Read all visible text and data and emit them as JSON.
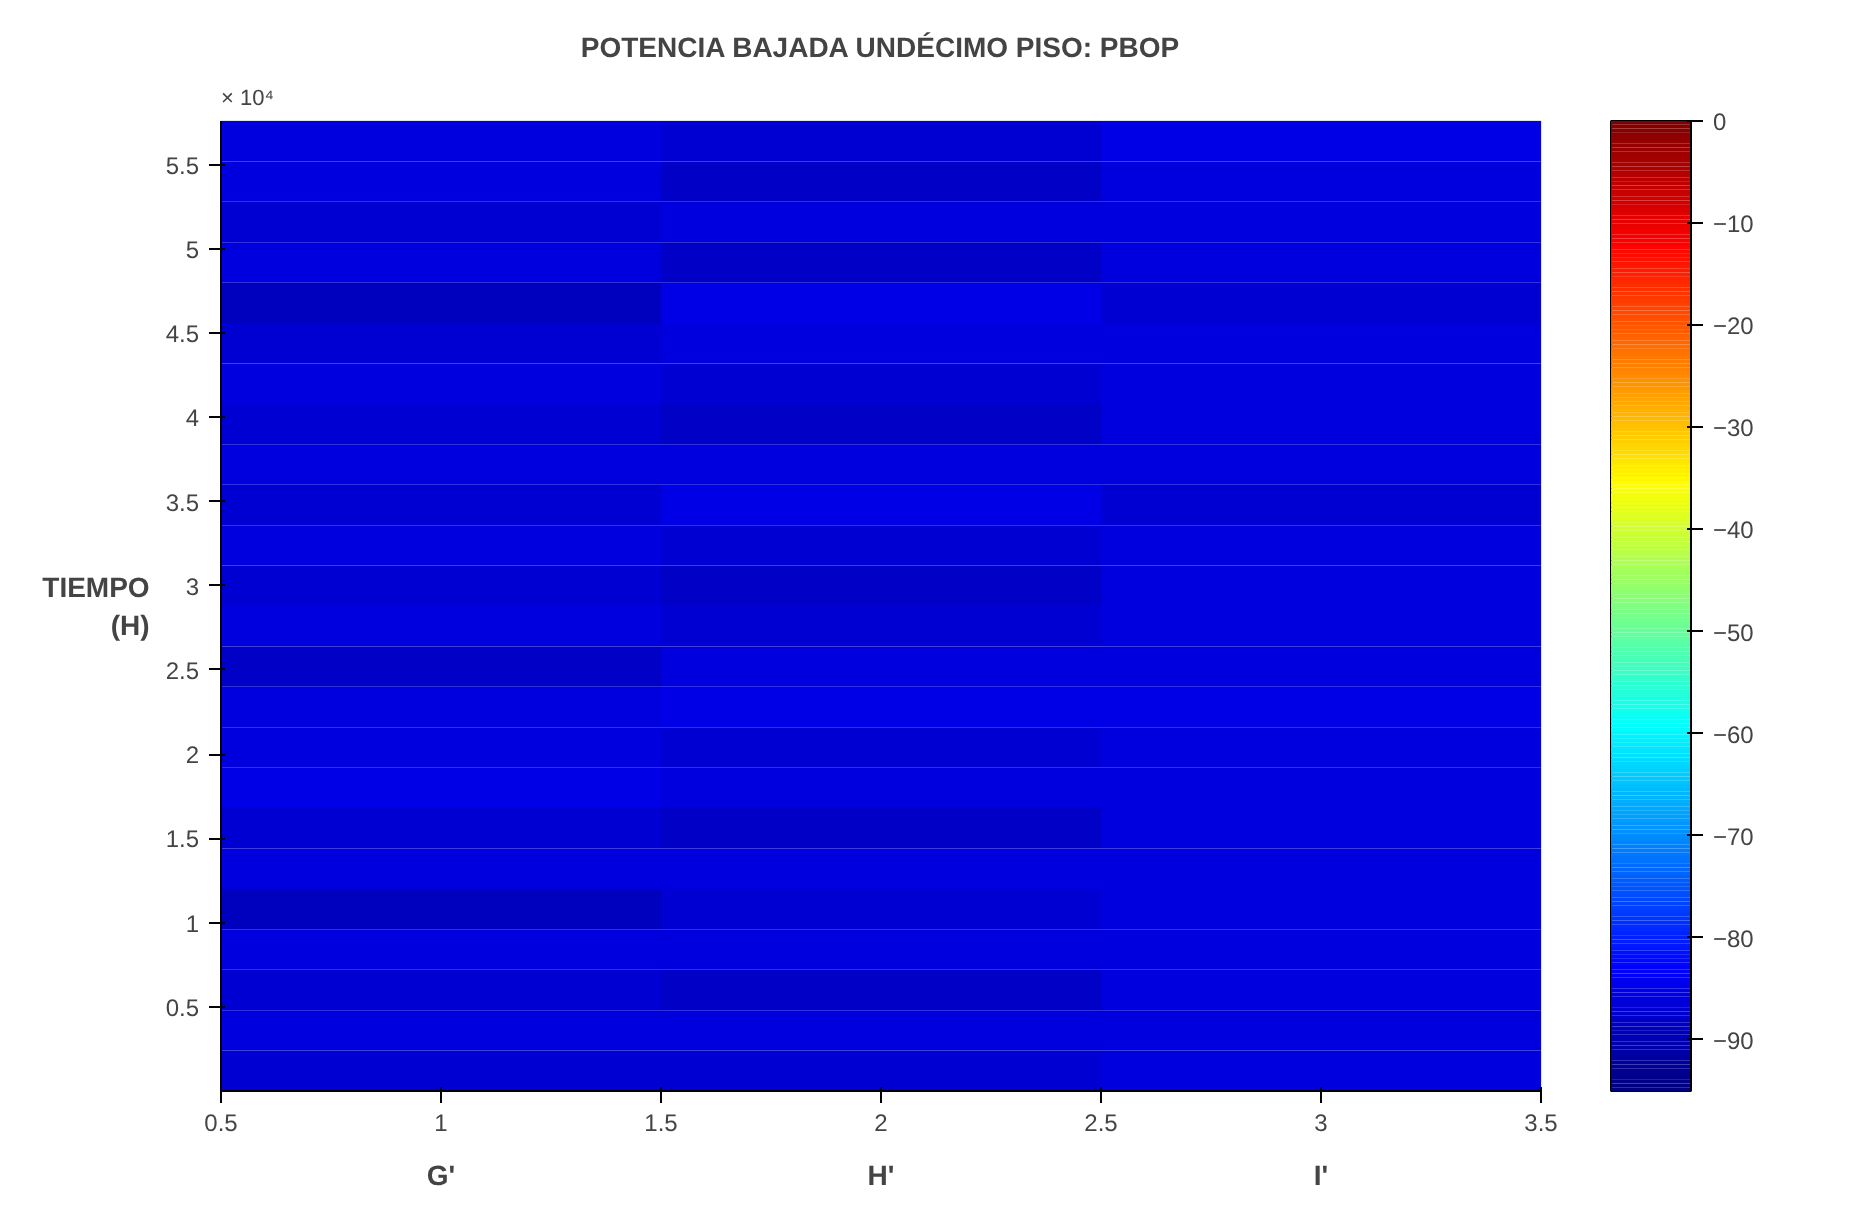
{
  "chart_data": {
    "type": "heatmap",
    "title": "POTENCIA BAJADA UNDÉCIMO PISO: PBOP",
    "ylabel": "TIEMPO\n(H)",
    "x": [
      1,
      2,
      3
    ],
    "xlim": [
      0.5,
      3.5
    ],
    "xticks": [
      0.5,
      1,
      1.5,
      2,
      2.5,
      3,
      3.5
    ],
    "ylim": [
      0,
      5.76
    ],
    "yticks": [
      0.5,
      1,
      1.5,
      2,
      2.5,
      3,
      3.5,
      4,
      4.5,
      5,
      5.5
    ],
    "annotations": [
      "× 10⁴",
      "G'",
      "H'",
      "I'"
    ],
    "cells": [
      [
        -86,
        -87,
        -85
      ],
      [
        -86,
        -88,
        -86
      ],
      [
        -87,
        -86,
        -86
      ],
      [
        -86,
        -88,
        -86
      ],
      [
        -89,
        -85,
        -87
      ],
      [
        -87,
        -86,
        -86
      ],
      [
        -86,
        -87,
        -86
      ],
      [
        -87,
        -88,
        -86
      ],
      [
        -86,
        -86,
        -86
      ],
      [
        -87,
        -85,
        -87
      ],
      [
        -86,
        -87,
        -86
      ],
      [
        -87,
        -88,
        -86
      ],
      [
        -86,
        -87,
        -86
      ],
      [
        -88,
        -86,
        -86
      ],
      [
        -86,
        -85,
        -85
      ],
      [
        -86,
        -87,
        -86
      ],
      [
        -85,
        -86,
        -86
      ],
      [
        -87,
        -88,
        -86
      ],
      [
        -86,
        -86,
        -86
      ],
      [
        -89,
        -87,
        -86
      ],
      [
        -86,
        -86,
        -86
      ],
      [
        -87,
        -88,
        -86
      ],
      [
        -86,
        -86,
        -86
      ],
      [
        -87,
        -87,
        -86
      ]
    ],
    "clim": [
      -95,
      0
    ],
    "cticks": [
      0,
      -10,
      -20,
      -30,
      -40,
      -50,
      -60,
      -70,
      -80,
      -90
    ]
  }
}
